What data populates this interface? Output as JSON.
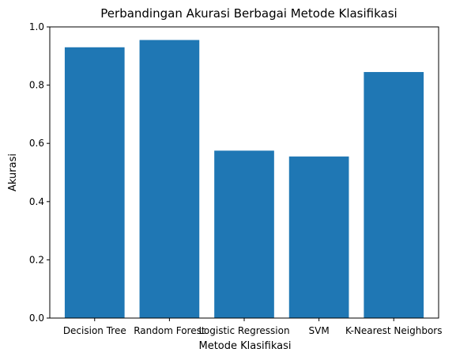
{
  "chart_data": {
    "type": "bar",
    "title": "Perbandingan Akurasi Berbagai Metode Klasifikasi",
    "xlabel": "Metode Klasifikasi",
    "ylabel": "Akurasi",
    "categories": [
      "Decision Tree",
      "Random Forest",
      "Logistic Regression",
      "SVM",
      "K-Nearest Neighbors"
    ],
    "values": [
      0.93,
      0.955,
      0.575,
      0.555,
      0.845
    ],
    "ylim": [
      0,
      1.0
    ],
    "yticks": [
      "0.0",
      "0.2",
      "0.4",
      "0.6",
      "0.8",
      "1.0"
    ],
    "grid": false,
    "bar_color": "#1f77b4"
  }
}
